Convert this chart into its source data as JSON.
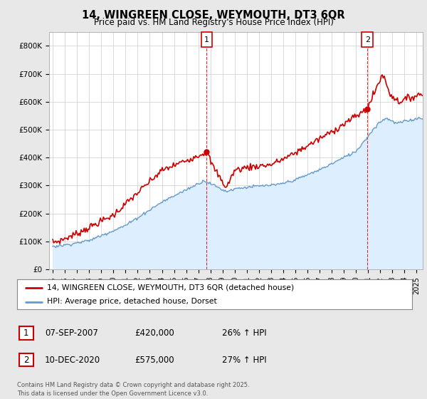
{
  "title": "14, WINGREEN CLOSE, WEYMOUTH, DT3 6QR",
  "subtitle": "Price paid vs. HM Land Registry's House Price Index (HPI)",
  "ylim": [
    0,
    850000
  ],
  "yticks": [
    0,
    100000,
    200000,
    300000,
    400000,
    500000,
    600000,
    700000,
    800000
  ],
  "xlim_start": 1994.7,
  "xlim_end": 2025.5,
  "line1_color": "#cc0000",
  "line2_color": "#6699cc",
  "fill2_color": "#ddeeff",
  "sale1_x": 2007.69,
  "sale1_y": 420000,
  "sale2_x": 2020.94,
  "sale2_y": 575000,
  "legend_line1": "14, WINGREEN CLOSE, WEYMOUTH, DT3 6QR (detached house)",
  "legend_line2": "HPI: Average price, detached house, Dorset",
  "table_row1": [
    "1",
    "07-SEP-2007",
    "£420,000",
    "26% ↑ HPI"
  ],
  "table_row2": [
    "2",
    "10-DEC-2020",
    "£575,000",
    "27% ↑ HPI"
  ],
  "footnote": "Contains HM Land Registry data © Crown copyright and database right 2025.\nThis data is licensed under the Open Government Licence v3.0.",
  "bg_color": "#e8e8e8",
  "plot_bg_color": "#ffffff",
  "box_color": "#cc0000"
}
